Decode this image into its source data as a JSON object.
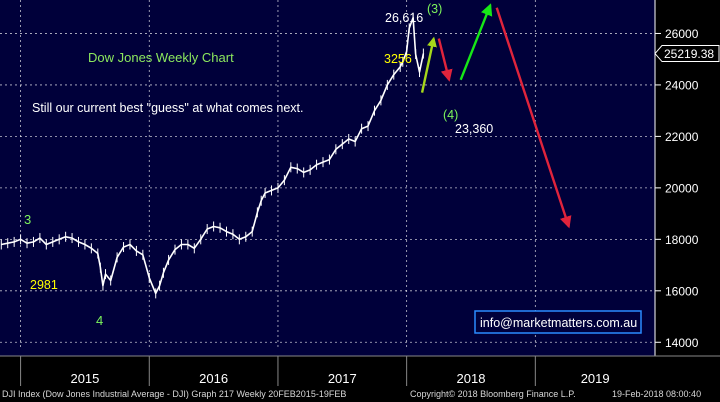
{
  "chart_data": {
    "type": "line",
    "title": "Dow Jones Weekly Chart",
    "subtitle": "Still our current best \"guess\" at what comes next.",
    "y_ticks": [
      14000,
      16000,
      18000,
      20000,
      22000,
      24000,
      26000
    ],
    "ylim": [
      13700,
      27300
    ],
    "x_ticks": [
      "2015",
      "2016",
      "2017",
      "2018",
      "2019"
    ],
    "x_year_starts": [
      2015,
      2016,
      2017,
      2018,
      2019,
      2020
    ],
    "xlim": [
      2014.84,
      2019.93
    ],
    "last_price_label": "25219.38",
    "last_price": 25219.38,
    "series": [
      {
        "x": [
          2014.85,
          2014.9,
          2014.95,
          2015.0,
          2015.05,
          2015.1,
          2015.15,
          2015.2,
          2015.25,
          2015.3,
          2015.35,
          2015.4,
          2015.45,
          2015.5,
          2015.55,
          2015.6,
          2015.62,
          2015.64,
          2015.66,
          2015.7,
          2015.75,
          2015.8,
          2015.85,
          2015.9,
          2015.95,
          2016.0,
          2016.05,
          2016.08,
          2016.11,
          2016.15,
          2016.2,
          2016.25,
          2016.3,
          2016.35,
          2016.4,
          2016.45,
          2016.5,
          2016.55,
          2016.6,
          2016.65,
          2016.7,
          2016.75,
          2016.8,
          2016.84,
          2016.87,
          2016.9,
          2016.95,
          2017.0,
          2017.05,
          2017.1,
          2017.15,
          2017.2,
          2017.25,
          2017.3,
          2017.35,
          2017.4,
          2017.45,
          2017.5,
          2017.55,
          2017.6,
          2017.65,
          2017.7,
          2017.75,
          2017.8,
          2017.85,
          2017.9,
          2017.95,
          2017.97,
          2018.0,
          2018.02,
          2018.05,
          2018.07,
          2018.1,
          2018.13
        ],
        "values": [
          17800,
          17850,
          17900,
          18000,
          17850,
          17900,
          18050,
          17800,
          17900,
          18000,
          18100,
          18050,
          17900,
          17800,
          17650,
          17450,
          16900,
          16200,
          16650,
          16400,
          17300,
          17700,
          17800,
          17550,
          17400,
          16500,
          15900,
          16200,
          16700,
          17200,
          17600,
          17800,
          17800,
          17650,
          18000,
          18400,
          18500,
          18450,
          18300,
          18200,
          18000,
          18100,
          18300,
          19050,
          19500,
          19800,
          19900,
          20000,
          20300,
          20800,
          20750,
          20600,
          20700,
          20900,
          21000,
          21100,
          21500,
          21700,
          21900,
          21800,
          22300,
          22400,
          23000,
          23400,
          24000,
          24400,
          24700,
          24900,
          25300,
          26200,
          26616,
          25200,
          24500,
          25219.38
        ]
      }
    ],
    "annotations": {
      "wave3_2015": "3",
      "low_2015": "2981",
      "wave4_2015": "4",
      "high_value": "26,616",
      "high_wave": "(3)",
      "points": "3256",
      "low_wave": "(4)",
      "low_value": "23,360"
    },
    "projection_arrows": [
      {
        "color": "#a6d81a",
        "from": [
          2018.12,
          23700
        ],
        "to": [
          2018.21,
          25800
        ]
      },
      {
        "color": "#e0243c",
        "from": [
          2018.25,
          25800
        ],
        "to": [
          2018.33,
          24200
        ]
      },
      {
        "color": "#17e817",
        "from": [
          2018.42,
          24200
        ],
        "to": [
          2018.65,
          27100
        ]
      },
      {
        "color": "#e0243c",
        "from": [
          2018.7,
          27000
        ],
        "to": [
          2019.26,
          18500
        ]
      }
    ]
  },
  "watermark": "info@marketmatters.com.au",
  "footer": {
    "left": "DJI Index (Dow Jones Industrial Average - DJI) Graph 217  Weekly 20FEB2015-19FEB",
    "center": "Copyright© 2018 Bloomberg Finance L.P.",
    "right": "19-Feb-2018 08:00:40"
  },
  "colors": {
    "background": "#00003a",
    "price": "#ffffff",
    "grid": "#ffffff",
    "title": "#8ce85e",
    "yellow_label": "#ffff00",
    "green_label": "#7cf45c",
    "watermark_border": "#2a8cff"
  }
}
